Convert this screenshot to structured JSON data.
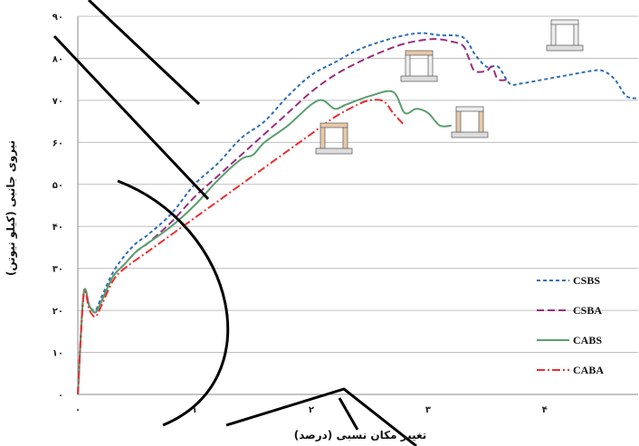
{
  "chart_data": {
    "type": "line",
    "xlabel": "تغییر مکان نسبی (درصد)",
    "ylabel": "نیروی جانبی (کیلو نیوتن)",
    "xlim": [
      0,
      4.8
    ],
    "ylim": [
      0,
      90
    ],
    "x_ticks": [
      0,
      1,
      2,
      3,
      4
    ],
    "x_tick_labels": [
      "۰",
      "۱",
      "۲",
      "۳",
      "۴"
    ],
    "y_ticks": [
      0,
      10,
      20,
      30,
      40,
      50,
      60,
      70,
      80,
      90
    ],
    "y_tick_labels": [
      "۰",
      "۱۰",
      "۲۰",
      "۳۰",
      "۴۰",
      "۵۰",
      "۶۰",
      "۷۰",
      "۸۰",
      "۹۰"
    ],
    "grid": "horizontal",
    "legend_position": "bottom-right",
    "series": [
      {
        "name": "CSBS",
        "color": "#2e6fb5",
        "dash": "4,3",
        "x": [
          0,
          0.05,
          0.1,
          0.15,
          0.2,
          0.3,
          0.4,
          0.5,
          0.6,
          0.8,
          1.0,
          1.2,
          1.4,
          1.6,
          1.8,
          2.0,
          2.2,
          2.4,
          2.6,
          2.8,
          2.95,
          3.1,
          3.3,
          3.4,
          3.5,
          3.6,
          3.7,
          3.8,
          4.0,
          4.2,
          4.4,
          4.5,
          4.6,
          4.7,
          4.8
        ],
        "y": [
          0,
          24,
          21,
          20,
          23,
          29,
          33,
          36,
          38,
          43,
          50,
          55,
          61,
          65,
          71,
          76,
          79,
          82,
          84,
          85.5,
          86,
          85.5,
          85,
          81,
          78,
          78,
          74,
          74,
          75,
          76,
          77,
          77,
          75,
          71,
          70.5
        ]
      },
      {
        "name": "CSBA",
        "color": "#9b2d7f",
        "dash": "8,4",
        "x": [
          0,
          0.05,
          0.1,
          0.15,
          0.2,
          0.3,
          0.4,
          0.5,
          0.6,
          0.8,
          1.0,
          1.2,
          1.4,
          1.6,
          1.8,
          2.0,
          2.2,
          2.4,
          2.6,
          2.8,
          3.0,
          3.1,
          3.2,
          3.3,
          3.35,
          3.4,
          3.5,
          3.55,
          3.6,
          3.7
        ],
        "y": [
          0,
          24,
          21,
          19.5,
          22,
          28,
          31,
          34,
          36,
          41,
          47,
          52,
          57,
          62,
          67,
          72,
          76,
          79,
          81.5,
          83.5,
          84.5,
          84.5,
          84,
          83,
          80,
          77,
          77,
          78,
          75,
          75
        ]
      },
      {
        "name": "CABS",
        "color": "#5a9e6f",
        "dash": "",
        "x": [
          0,
          0.05,
          0.1,
          0.15,
          0.2,
          0.3,
          0.4,
          0.5,
          0.6,
          0.8,
          1.0,
          1.2,
          1.4,
          1.5,
          1.6,
          1.8,
          2.0,
          2.1,
          2.2,
          2.3,
          2.5,
          2.7,
          2.8,
          2.9,
          3.0,
          3.1,
          3.2
        ],
        "y": [
          0,
          24,
          21,
          19.5,
          22,
          28,
          31,
          34,
          36,
          40,
          45,
          51,
          56,
          57,
          60,
          64,
          69,
          70,
          68,
          69,
          71,
          72,
          67,
          68,
          67,
          64,
          64
        ]
      },
      {
        "name": "CABA",
        "color": "#e83030",
        "dash": "9,3,2,3",
        "x": [
          0,
          0.05,
          0.1,
          0.15,
          0.2,
          0.3,
          0.4,
          0.6,
          0.8,
          1.0,
          1.2,
          1.4,
          1.6,
          1.8,
          2.0,
          2.2,
          2.4,
          2.5,
          2.6,
          2.65,
          2.7,
          2.8
        ],
        "y": [
          0,
          23.5,
          20,
          18.5,
          21,
          27,
          30,
          34,
          38,
          42,
          46,
          50,
          54,
          58,
          62,
          66,
          69,
          70,
          70,
          69,
          67,
          64
        ]
      }
    ]
  }
}
